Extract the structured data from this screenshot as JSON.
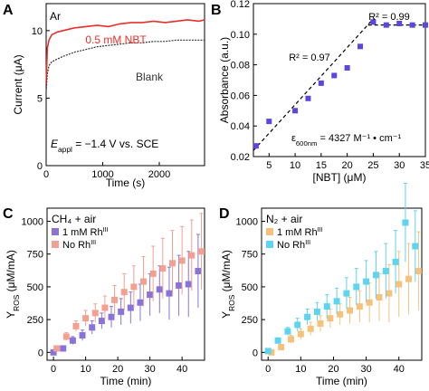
{
  "chart_data": [
    {
      "panel": "A",
      "type": "line",
      "annotation_condition": "Ar",
      "annotation_potential": "E",
      "annotation_potential_sub": "appl",
      "annotation_potential_rest": " = −1.4 V vs. SCE",
      "xlabel": "Time (s)",
      "ylabel": "Current (μA)",
      "xlim": [
        0,
        2800
      ],
      "ylim": [
        0,
        12
      ],
      "xticks": [
        0,
        1000,
        2000
      ],
      "yticks": [
        0,
        5,
        10
      ],
      "series": [
        {
          "name": "0.5 mM NBT",
          "color": "#e8302a",
          "x": [
            0,
            20,
            50,
            100,
            200,
            300,
            500,
            700,
            900,
            1100,
            1300,
            1500,
            1700,
            1900,
            2100,
            2300,
            2500,
            2700,
            2800
          ],
          "y": [
            6.0,
            8.7,
            9.3,
            9.7,
            9.9,
            10.0,
            10.2,
            10.3,
            10.4,
            10.3,
            10.5,
            10.6,
            10.6,
            10.7,
            10.6,
            10.7,
            10.8,
            10.7,
            10.8
          ]
        },
        {
          "name": "Blank",
          "color": "#333333",
          "x": [
            0,
            20,
            50,
            100,
            200,
            300,
            500,
            700,
            900,
            1100,
            1300,
            1500,
            1700,
            1900,
            2100,
            2300,
            2500,
            2700,
            2800
          ],
          "y": [
            5.5,
            6.8,
            7.4,
            7.7,
            7.9,
            8.1,
            8.4,
            8.6,
            8.8,
            8.9,
            9.0,
            9.1,
            9.1,
            9.2,
            9.2,
            9.3,
            9.3,
            9.3,
            9.3
          ]
        }
      ]
    },
    {
      "panel": "B",
      "type": "scatter",
      "xlabel": "[NBT] (μM)",
      "ylabel": "Absorbance (a.u.)",
      "xlim": [
        2,
        35
      ],
      "ylim": [
        0.02,
        0.12
      ],
      "xticks": [
        5,
        10,
        15,
        20,
        25,
        30,
        35
      ],
      "yticks": [
        0.02,
        0.04,
        0.06,
        0.08,
        0.1,
        0.12
      ],
      "x": [
        2.5,
        5,
        10,
        12.5,
        15,
        17.5,
        20,
        22.5,
        25,
        27.5,
        30,
        32.5,
        35
      ],
      "y": [
        0.027,
        0.043,
        0.05,
        0.058,
        0.068,
        0.073,
        0.078,
        0.092,
        0.108,
        0.106,
        0.107,
        0.106,
        0.106
      ],
      "color": "#5b47e0",
      "fit1_label": "R² = 0.97",
      "fit2_label": "R² = 0.99",
      "epsilon_symbol": "ε",
      "epsilon_sub": "600nm",
      "epsilon_value": " = 4327 M⁻¹ • cm⁻¹"
    },
    {
      "panel": "C",
      "type": "scatter",
      "title": "CH₄ + air",
      "xlabel": "Time (min)",
      "ylabel": "Y",
      "ylabel_sub": "ROS",
      "ylabel_units": " (μM/mA)",
      "xlim": [
        -2,
        47
      ],
      "ylim": [
        -60,
        1100
      ],
      "xticks": [
        0,
        10,
        20,
        30,
        40
      ],
      "yticks": [
        0,
        250,
        500,
        750,
        1000
      ],
      "series": [
        {
          "name": "1 mM Rh",
          "name_sup": "III",
          "color": "#8a73d8",
          "x": [
            0,
            3,
            6,
            9,
            12,
            15,
            18,
            21,
            24,
            27,
            30,
            33,
            36,
            39,
            42,
            45
          ],
          "y": [
            0,
            30,
            90,
            130,
            190,
            240,
            270,
            310,
            340,
            380,
            440,
            480,
            450,
            510,
            520,
            620
          ],
          "err": [
            10,
            20,
            30,
            40,
            50,
            60,
            80,
            100,
            120,
            140,
            160,
            180,
            200,
            230,
            250,
            280
          ]
        },
        {
          "name": "No Rh",
          "name_sup": "III",
          "color": "#f4a091",
          "x": [
            1,
            4,
            7,
            10,
            13,
            16,
            19,
            22,
            25,
            28,
            31,
            34,
            37,
            40,
            43,
            46
          ],
          "y": [
            30,
            120,
            200,
            260,
            300,
            340,
            400,
            460,
            500,
            540,
            600,
            640,
            680,
            700,
            740,
            770
          ],
          "err": [
            15,
            30,
            40,
            60,
            70,
            90,
            110,
            140,
            160,
            190,
            210,
            230,
            250,
            260,
            270,
            290
          ]
        }
      ]
    },
    {
      "panel": "D",
      "type": "scatter",
      "title": "N₂ + air",
      "xlabel": "Time (min)",
      "ylabel": "Y",
      "ylabel_sub": "ROS",
      "ylabel_units": " (μM/mA)",
      "xlim": [
        -2,
        47
      ],
      "ylim": [
        -60,
        1100
      ],
      "xticks": [
        0,
        10,
        20,
        30,
        40
      ],
      "yticks": [
        0,
        250,
        500,
        750,
        1000
      ],
      "series": [
        {
          "name": "1 mM Rh",
          "name_sup": "III",
          "color": "#f6c27b",
          "x": [
            1,
            4,
            7,
            10,
            13,
            16,
            19,
            22,
            25,
            28,
            31,
            34,
            37,
            40,
            43,
            46
          ],
          "y": [
            0,
            40,
            100,
            140,
            180,
            220,
            260,
            290,
            320,
            350,
            380,
            420,
            450,
            520,
            560,
            620
          ],
          "err": [
            10,
            20,
            30,
            40,
            50,
            60,
            70,
            80,
            100,
            120,
            150,
            180,
            220,
            250,
            270,
            300
          ]
        },
        {
          "name": "No Rh",
          "name_sup": "III",
          "color": "#5fd4f0",
          "x": [
            0,
            3,
            6,
            9,
            12,
            15,
            18,
            21,
            24,
            27,
            30,
            33,
            36,
            39,
            42,
            45
          ],
          "y": [
            10,
            90,
            160,
            210,
            270,
            310,
            350,
            390,
            450,
            500,
            540,
            590,
            620,
            690,
            990,
            810
          ],
          "err": [
            10,
            20,
            30,
            50,
            60,
            70,
            90,
            100,
            120,
            140,
            160,
            180,
            210,
            240,
            300,
            270
          ]
        }
      ]
    }
  ],
  "panel_letters": [
    "A",
    "B",
    "C",
    "D"
  ]
}
